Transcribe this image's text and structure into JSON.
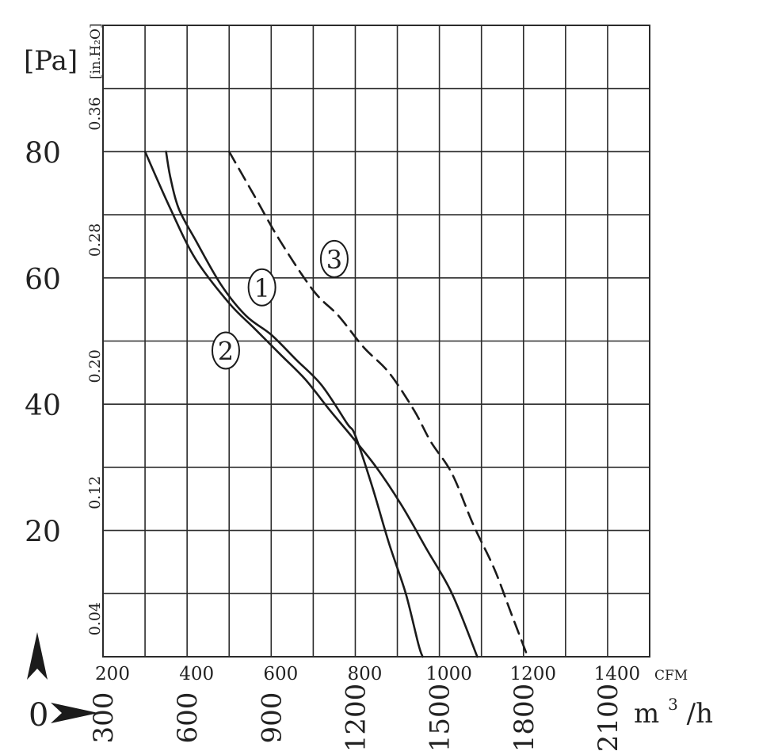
{
  "chart_data": {
    "type": "line",
    "x_unit_cfm": "CFM",
    "x_unit_m3h_base": "m",
    "x_unit_m3h_sup": "3",
    "x_unit_m3h_tail": "/h",
    "y_unit_pa": "[Pa]",
    "y_unit_inh2o": "[in.H₂O]",
    "origin_label": "0",
    "x_ticks_cfm": [
      "200",
      "400",
      "600",
      "800",
      "1000",
      "1200",
      "1400"
    ],
    "x_ticks_m3h": [
      "300",
      "600",
      "900",
      "1200",
      "1500",
      "1800",
      "2100"
    ],
    "y_ticks_pa": [
      "20",
      "40",
      "60",
      "80"
    ],
    "y_ticks_inh2o": [
      "0.04",
      "0.12",
      "0.20",
      "0.28",
      "0.36"
    ],
    "xlim_cfm": [
      200,
      1500
    ],
    "ylim_pa": [
      0,
      100
    ],
    "grid": true,
    "series": [
      {
        "name": "1",
        "style": "solid",
        "points": [
          [
            300,
            80
          ],
          [
            360,
            71
          ],
          [
            420,
            63
          ],
          [
            500,
            56
          ],
          [
            560,
            52
          ],
          [
            620,
            48
          ],
          [
            680,
            44
          ],
          [
            740,
            39
          ],
          [
            790,
            35
          ],
          [
            850,
            30
          ],
          [
            910,
            24
          ],
          [
            970,
            17
          ],
          [
            1030,
            10
          ],
          [
            1090,
            0
          ]
        ]
      },
      {
        "name": "2",
        "style": "solid",
        "points": [
          [
            350,
            80
          ],
          [
            360,
            76
          ],
          [
            380,
            71
          ],
          [
            420,
            66
          ],
          [
            480,
            59
          ],
          [
            540,
            54
          ],
          [
            600,
            51
          ],
          [
            660,
            47
          ],
          [
            720,
            43
          ],
          [
            780,
            37
          ],
          [
            800,
            35
          ],
          [
            840,
            27
          ],
          [
            880,
            18
          ],
          [
            920,
            10
          ],
          [
            950,
            2
          ],
          [
            960,
            0
          ]
        ]
      },
      {
        "name": "3",
        "style": "dashed",
        "points": [
          [
            500,
            80
          ],
          [
            560,
            73
          ],
          [
            620,
            66
          ],
          [
            700,
            58
          ],
          [
            760,
            54
          ],
          [
            820,
            49
          ],
          [
            880,
            45
          ],
          [
            940,
            39
          ],
          [
            980,
            34
          ],
          [
            1030,
            29
          ],
          [
            1080,
            21
          ],
          [
            1130,
            14
          ],
          [
            1170,
            7
          ],
          [
            1210,
            0
          ]
        ]
      }
    ]
  }
}
